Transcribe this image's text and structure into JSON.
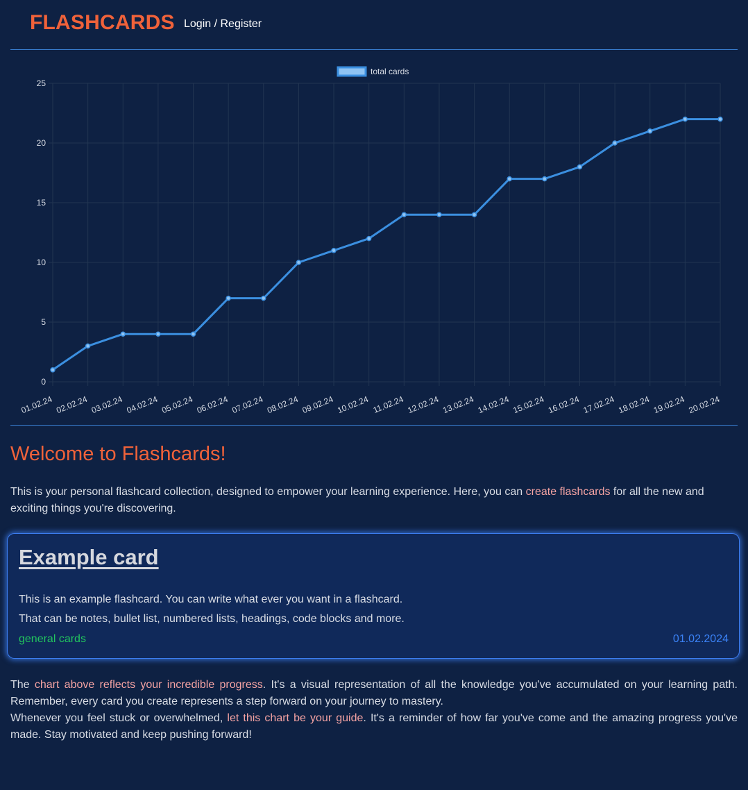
{
  "header": {
    "brand": "FLASHCARDS",
    "login_link": "Login / Register"
  },
  "colors": {
    "background": "#0e2143",
    "brand": "#f0623a",
    "accent_line": "#3b82d6",
    "series_line": "#3b8fe0",
    "highlight_text": "#f5a3a3",
    "category": "#22c55e",
    "date": "#3b82f6"
  },
  "chart_data": {
    "type": "line",
    "title": "",
    "xlabel": "",
    "ylabel": "",
    "x": [
      "01.02.24",
      "02.02.24",
      "03.02.24",
      "04.02.24",
      "05.02.24",
      "06.02.24",
      "07.02.24",
      "08.02.24",
      "09.02.24",
      "10.02.24",
      "11.02.24",
      "12.02.24",
      "13.02.24",
      "14.02.24",
      "15.02.24",
      "16.02.24",
      "17.02.24",
      "18.02.24",
      "19.02.24",
      "20.02.24"
    ],
    "series": [
      {
        "name": "total cards",
        "values": [
          1,
          3,
          4,
          4,
          4,
          7,
          7,
          10,
          11,
          12,
          14,
          14,
          14,
          17,
          17,
          18,
          20,
          21,
          22,
          22
        ]
      }
    ],
    "ylim": [
      0,
      25
    ],
    "yticks": [
      0,
      5,
      10,
      15,
      20,
      25
    ],
    "grid": true,
    "legend_position": "top-center"
  },
  "welcome": {
    "title": "Welcome to Flashcards!",
    "intro_before": "This is your personal flashcard collection, designed to empower your learning experience. Here, you can ",
    "intro_link": "create flashcards",
    "intro_after": " for all the new and exciting things you're discovering."
  },
  "example_card": {
    "title": "Example card",
    "line1": "This is an example flashcard. You can write what ever you want in a flashcard.",
    "line2": "That can be notes, bullet list, numbered lists, headings, code blocks and more.",
    "category": "general cards",
    "date": "01.02.2024"
  },
  "outro": {
    "p1_before": "The ",
    "p1_highlight": "chart above reflects your incredible progress",
    "p1_after": ". It's a visual representation of all the knowledge you've accumulated on your learning path. Remember, every card you create represents a step forward on your journey to mastery.",
    "p2_before": "Whenever you feel stuck or overwhelmed, ",
    "p2_highlight": "let this chart be your guide",
    "p2_after": ". It's a reminder of how far you've come and the amazing progress you've made. Stay motivated and keep pushing forward!"
  }
}
